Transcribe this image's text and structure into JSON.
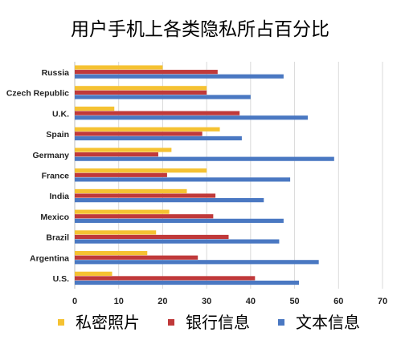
{
  "chart_data": {
    "type": "bar",
    "orientation": "horizontal",
    "title": "用户手机上各类隐私所占百分比",
    "categories": [
      "Russia",
      "Czech Republic",
      "U.K.",
      "Spain",
      "Germany",
      "France",
      "India",
      "Mexico",
      "Brazil",
      "Argentina",
      "U.S."
    ],
    "series": [
      {
        "name": "私密照片",
        "color": "#f5c232",
        "values": [
          20,
          30,
          9,
          33,
          22,
          30,
          25.5,
          21.5,
          18.5,
          16.5,
          8.5
        ]
      },
      {
        "name": "银行信息",
        "color": "#c0393a",
        "values": [
          32.5,
          30,
          37.5,
          29,
          19,
          21,
          32,
          31.5,
          35,
          28,
          41
        ]
      },
      {
        "name": "文本信息",
        "color": "#4a78c2",
        "values": [
          47.5,
          40,
          53,
          38,
          59,
          49,
          43,
          47.5,
          46.5,
          55.5,
          51
        ]
      }
    ],
    "xlim": [
      0,
      70
    ],
    "xticks": [
      0,
      10,
      20,
      30,
      40,
      50,
      60,
      70
    ],
    "grid": true,
    "legend_position": "bottom"
  }
}
